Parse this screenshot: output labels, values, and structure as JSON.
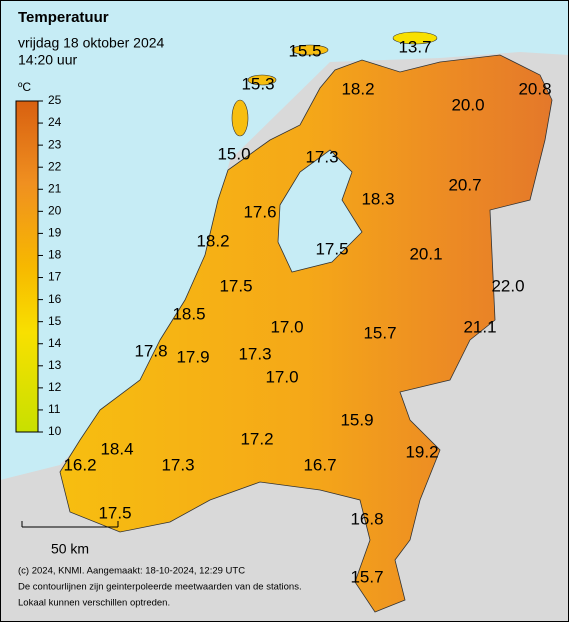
{
  "header": {
    "title": "Temperatuur",
    "date": "vrijdag 18 oktober 2024",
    "time": "14:20 uur"
  },
  "legend": {
    "unit": "ºC",
    "ticks": [
      25,
      24,
      23,
      22,
      21,
      20,
      19,
      18,
      17,
      16,
      15,
      14,
      13,
      12,
      11,
      10
    ]
  },
  "stations": [
    "15.5",
    "13.7",
    "15.3",
    "18.2",
    "20.0",
    "20.8",
    "15.0",
    "17.3",
    "18.3",
    "20.7",
    "17.6",
    "18.2",
    "17.5",
    "20.1",
    "22.0",
    "17.5",
    "18.5",
    "17.0",
    "15.7",
    "21.1",
    "17.8",
    "17.9",
    "17.3",
    "17.0",
    "15.9",
    "18.4",
    "17.2",
    "19.2",
    "16.2",
    "17.3",
    "16.7",
    "17.5",
    "16.8",
    "15.7"
  ],
  "scale": "50 km",
  "footer": [
    "(c) 2024, KNMI. Aangemaakt: 18-10-2024, 12:29 UTC",
    "De contourlijnen zijn geinterpoleerde meetwaarden van de stations.",
    "Lokaal kunnen verschillen optreden."
  ]
}
